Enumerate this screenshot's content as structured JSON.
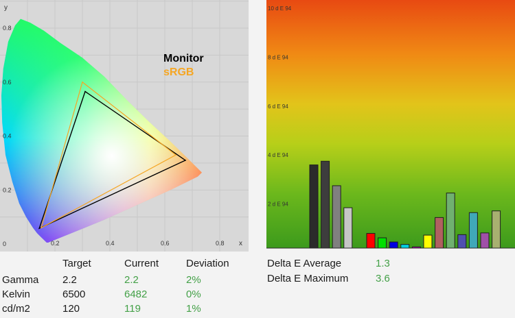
{
  "chart_data": [
    {
      "type": "scatter",
      "xlabel": "x",
      "ylabel": "y",
      "xlim": [
        0,
        0.8
      ],
      "ylim": [
        0,
        0.9
      ],
      "x_ticks": [
        "0.2",
        "0.4",
        "0.6",
        "0.8"
      ],
      "y_ticks": [
        "0",
        "0.2",
        "0.4",
        "0.6",
        "0.8"
      ],
      "grid": true,
      "legend": [
        "Monitor",
        "sRGB"
      ],
      "legend_position": "top-right",
      "series": [
        {
          "name": "Monitor",
          "color": "#000000",
          "points": [
            [
              0.675,
              0.31
            ],
            [
              0.31,
              0.565
            ],
            [
              0.143,
              0.058
            ]
          ]
        },
        {
          "name": "sRGB",
          "color": "#f5a623",
          "points": [
            [
              0.64,
              0.33
            ],
            [
              0.3,
              0.6
            ],
            [
              0.15,
              0.06
            ]
          ]
        }
      ]
    },
    {
      "type": "bar",
      "ylim": [
        0,
        10
      ],
      "y_ticks": [
        "2 d E 94",
        "4 d E 94",
        "6 d E 94",
        "8 d E 94",
        "10 d E 94"
      ],
      "values": [
        3.4,
        3.55,
        2.55,
        1.65,
        0,
        0.6,
        0.42,
        0.25,
        0.15,
        0.05,
        0.53,
        1.25,
        2.25,
        0.55,
        1.45,
        0.62,
        1.52
      ],
      "bar_colors": [
        "#2b2b2b",
        "#3d3d3d",
        "#808080",
        "#c6c6c6",
        null,
        "#ff0000",
        "#00e000",
        "#0000e0",
        "#00d0e0",
        "#c000c0",
        "#ffff00",
        "#b06060",
        "#70b070",
        "#5050b0",
        "#40a8b8",
        "#a050a8",
        "#a8b070"
      ]
    }
  ],
  "stats": {
    "headers": [
      "Target",
      "Current",
      "Deviation"
    ],
    "rows": [
      {
        "label": "Gamma",
        "target": "2.2",
        "current": "2.2",
        "deviation": "2%"
      },
      {
        "label": "Kelvin",
        "target": "6500",
        "current": "6482",
        "deviation": "0%"
      },
      {
        "label": "cd/m2",
        "target": "120",
        "current": "119",
        "deviation": "1%"
      }
    ]
  },
  "delta": {
    "average_label": "Delta E Average",
    "average_value": "1.3",
    "maximum_label": "Delta E Maximum",
    "maximum_value": "3.6"
  }
}
